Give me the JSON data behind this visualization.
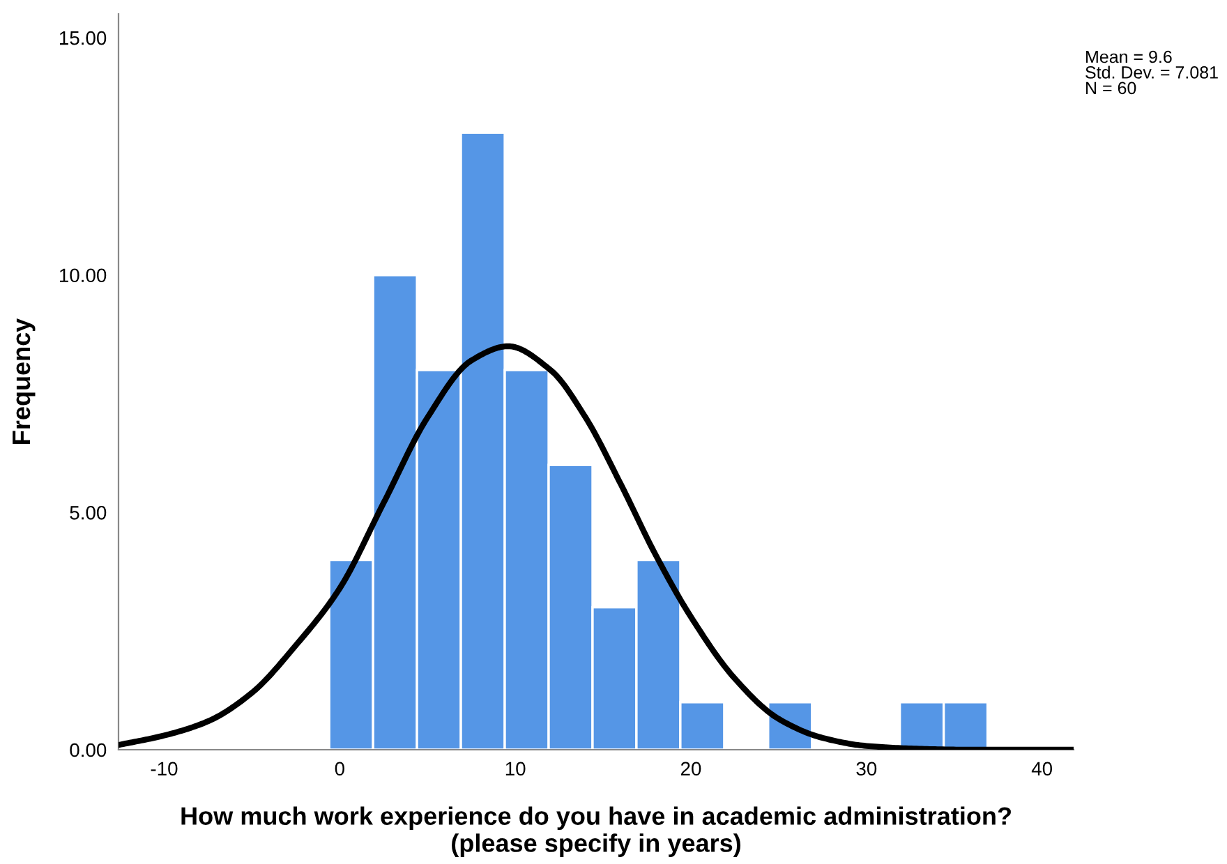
{
  "chart_data": {
    "type": "histogram",
    "xlabel": "How much work experience do you have in academic administration?\n(please specify in years)",
    "ylabel": "Frequency",
    "bins": [
      -0.6,
      1.9,
      4.4,
      6.9,
      9.4,
      11.9,
      14.4,
      16.9,
      19.4,
      21.9,
      24.4,
      26.9,
      29.4,
      31.9,
      34.4,
      36.9
    ],
    "values": [
      4,
      10,
      8,
      13,
      8,
      6,
      3,
      4,
      1,
      0,
      1,
      0,
      0,
      1,
      1
    ],
    "color": "#5596e6",
    "series": [
      {
        "type": "line",
        "color": "#000000",
        "x": [
          -12.6,
          -10,
          -7.5,
          -5,
          -2.5,
          0,
          2.5,
          5,
          7.5,
          9.6,
          12,
          14,
          16,
          18,
          20,
          22.5,
          25,
          27.5,
          30,
          33,
          36,
          41.8
        ],
        "values": [
          0.1,
          0.3,
          0.6,
          1.2,
          2.2,
          3.4,
          5.2,
          7.0,
          8.2,
          8.5,
          8.0,
          7.0,
          5.6,
          4.1,
          2.8,
          1.5,
          0.65,
          0.25,
          0.08,
          0.02,
          0.0,
          0.0
        ]
      }
    ],
    "xlim": [
      -12.6,
      41.8
    ],
    "ylim": [
      0,
      15.5
    ],
    "xticks": [
      -10,
      0,
      10,
      20,
      30,
      40
    ],
    "yticks": [
      {
        "value": 0,
        "label": "0.00"
      },
      {
        "value": 5,
        "label": "5.00"
      },
      {
        "value": 10,
        "label": "10.00"
      },
      {
        "value": 15,
        "label": "15.00"
      }
    ],
    "annotations": [
      "Mean = 9.6\nStd. Dev. = 7.081\nN = 60"
    ],
    "grid": false,
    "legend": false
  }
}
